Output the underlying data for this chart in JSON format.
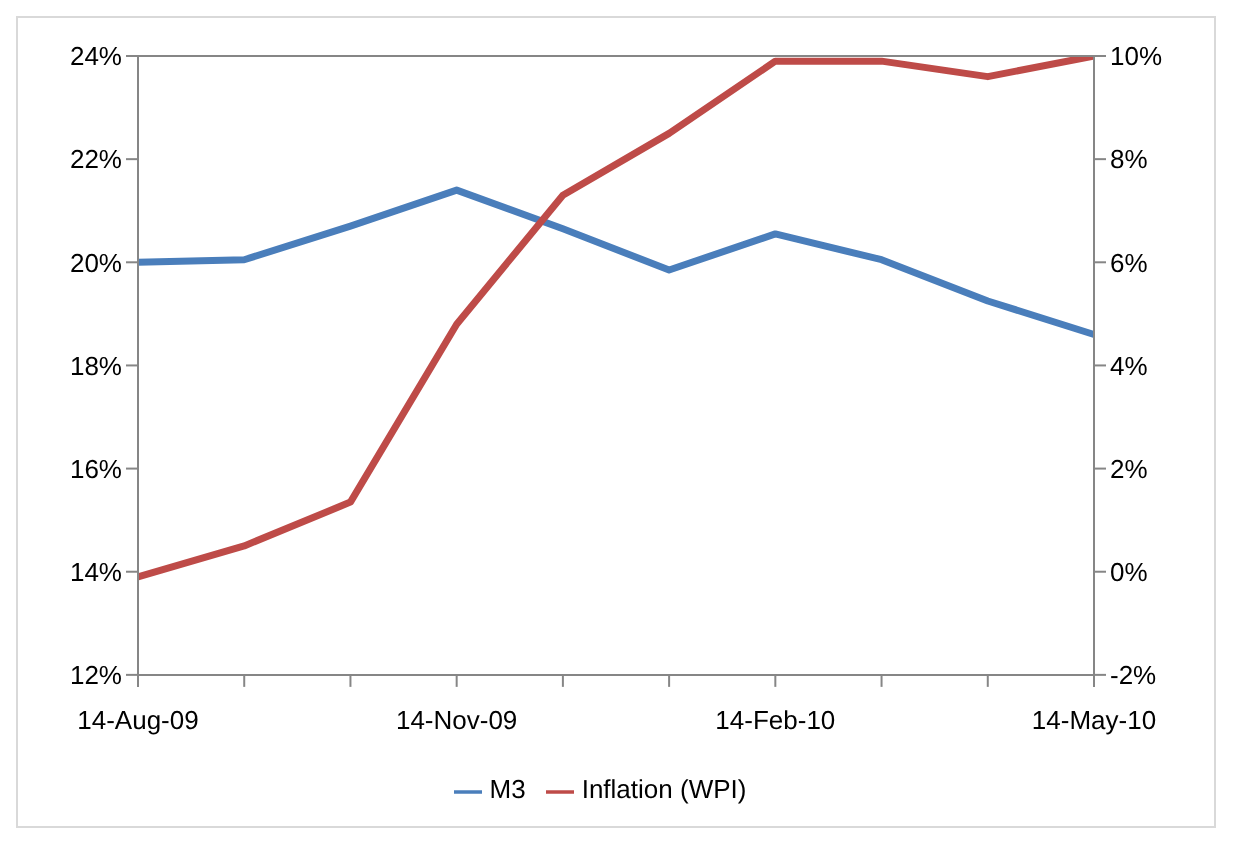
{
  "chart_data": {
    "type": "line",
    "categories": [
      "14-Aug-09",
      null,
      null,
      "14-Nov-09",
      null,
      null,
      "14-Feb-10",
      null,
      null,
      "14-May-10"
    ],
    "series": [
      {
        "name": "M3",
        "color": "#4a7ebb",
        "values": [
          20.0,
          20.05,
          20.7,
          21.4,
          20.65,
          19.85,
          20.55,
          20.05,
          19.25,
          18.6
        ]
      },
      {
        "name": "Inflation (WPI)",
        "color": "#be4b48",
        "axis": "y2",
        "values": [
          -0.1,
          0.5,
          1.35,
          4.8,
          7.3,
          8.5,
          9.9,
          9.9,
          9.6,
          10.0
        ]
      }
    ],
    "ylim": [
      12,
      24
    ],
    "yticks": [
      {
        "value": 12,
        "label": "12%"
      },
      {
        "value": 14,
        "label": "14%"
      },
      {
        "value": 16,
        "label": "16%"
      },
      {
        "value": 18,
        "label": "18%"
      },
      {
        "value": 20,
        "label": "20%"
      },
      {
        "value": 22,
        "label": "22%"
      },
      {
        "value": 24,
        "label": "24%"
      }
    ],
    "y2lim": [
      -2,
      10
    ],
    "y2ticks": [
      {
        "value": -2,
        "label": "-2%"
      },
      {
        "value": 0,
        "label": "0%"
      },
      {
        "value": 2,
        "label": "2%"
      },
      {
        "value": 4,
        "label": "4%"
      },
      {
        "value": 6,
        "label": "6%"
      },
      {
        "value": 8,
        "label": "8%"
      },
      {
        "value": 10,
        "label": "10%"
      }
    ],
    "legend": "bottom",
    "marker": "none",
    "line_style": "solid"
  }
}
